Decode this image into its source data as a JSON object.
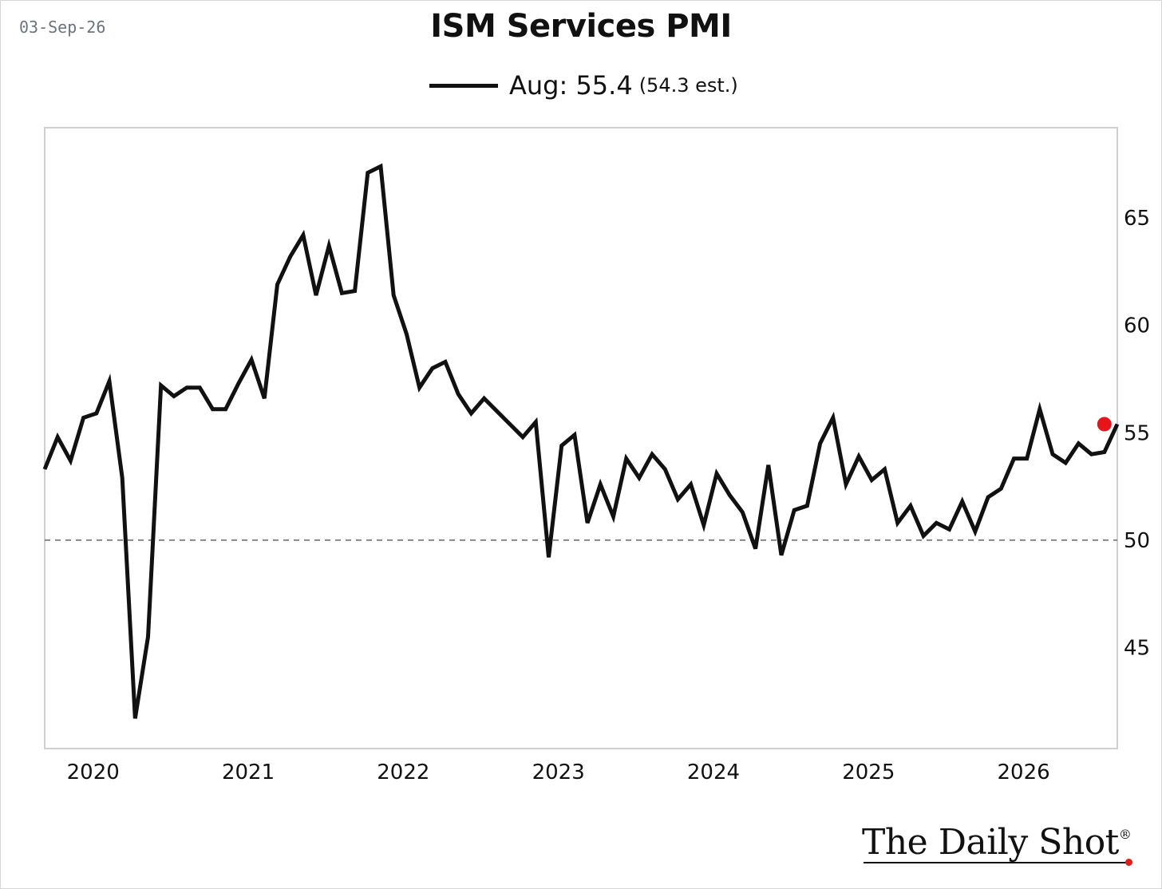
{
  "header": {
    "date": "03-Sep-26",
    "title": "ISM Services PMI"
  },
  "legend": {
    "label": "Aug: 55.4",
    "estimate": "(54.3 est.)"
  },
  "footer": {
    "logo_text": "The Daily Shot",
    "logo_mark": "®"
  },
  "colors": {
    "line": "#111111",
    "highlight_point": "#e8141b",
    "reference_line": "#666666",
    "plot_border": "#cfcfcf"
  },
  "chart_data": {
    "type": "line",
    "title": "ISM Services PMI",
    "x_start": "2019-10",
    "x_end": "2026-08",
    "xlim": [
      "2019-10",
      "2026-09"
    ],
    "ylim": [
      40.3,
      69.2
    ],
    "y_axis_position": "right",
    "grid": false,
    "reference_line": 50,
    "x_ticks": [
      "2020",
      "2021",
      "2022",
      "2023",
      "2024",
      "2025",
      "2026"
    ],
    "y_ticks": [
      45,
      50,
      55,
      60,
      65
    ],
    "highlight": {
      "date": "2026-08",
      "value": 55.4
    },
    "series": [
      {
        "values": [
          53.3,
          54.8,
          53.7,
          55.7,
          55.9,
          57.4,
          52.9,
          41.7,
          45.5,
          57.2,
          56.7,
          57.1,
          57.1,
          56.1,
          56.1,
          57.3,
          58.4,
          56.6,
          61.9,
          63.2,
          64.2,
          61.4,
          63.7,
          61.5,
          61.6,
          67.1,
          67.4,
          61.4,
          59.6,
          57.1,
          58.0,
          58.3,
          56.8,
          55.9,
          56.6,
          56.0,
          55.4,
          54.8,
          55.5,
          49.2,
          54.4,
          54.9,
          50.8,
          52.6,
          51.1,
          53.8,
          52.9,
          54.0,
          53.3,
          51.9,
          52.6,
          50.7,
          53.1,
          52.1,
          51.3,
          49.6,
          53.5,
          49.3,
          51.4,
          51.6,
          54.5,
          55.7,
          52.6,
          53.9,
          52.8,
          53.3,
          50.8,
          51.6,
          50.2,
          50.8,
          50.5,
          51.8,
          50.4,
          52.0,
          52.4,
          53.8,
          53.8,
          56.1,
          54.0,
          53.6,
          54.5,
          54.0,
          54.1,
          55.4
        ]
      }
    ]
  }
}
